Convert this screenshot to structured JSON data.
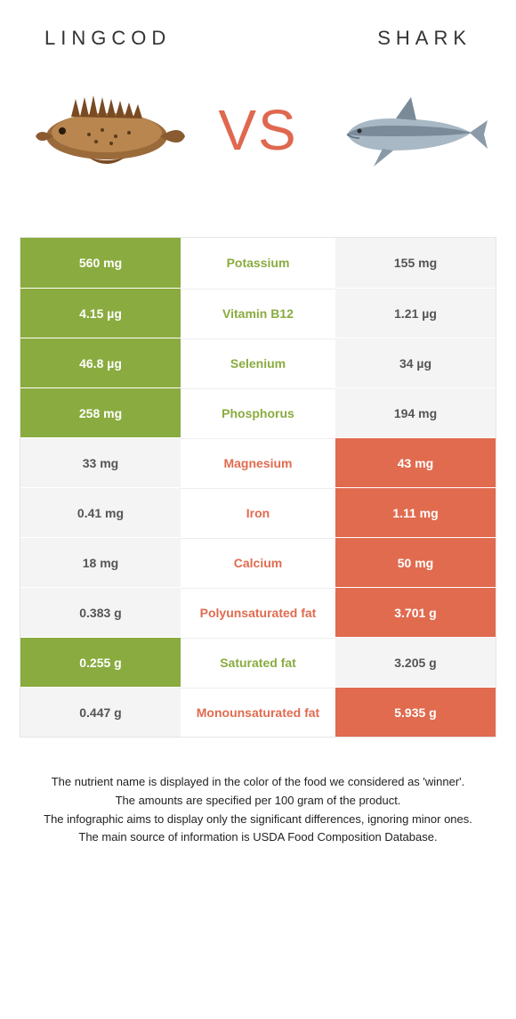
{
  "colors": {
    "left": "#8aab3f",
    "right": "#e06b4f",
    "neutral": "#f4f4f4",
    "neutral_text": "#555555"
  },
  "header": {
    "left_title": "LINGCOD",
    "right_title": "SHARK",
    "vs": "VS"
  },
  "rows": [
    {
      "label": "Potassium",
      "left": "560 mg",
      "right": "155 mg",
      "winner": "left"
    },
    {
      "label": "Vitamin B12",
      "left": "4.15 µg",
      "right": "1.21 µg",
      "winner": "left"
    },
    {
      "label": "Selenium",
      "left": "46.8 µg",
      "right": "34 µg",
      "winner": "left"
    },
    {
      "label": "Phosphorus",
      "left": "258 mg",
      "right": "194 mg",
      "winner": "left"
    },
    {
      "label": "Magnesium",
      "left": "33 mg",
      "right": "43 mg",
      "winner": "right"
    },
    {
      "label": "Iron",
      "left": "0.41 mg",
      "right": "1.11 mg",
      "winner": "right"
    },
    {
      "label": "Calcium",
      "left": "18 mg",
      "right": "50 mg",
      "winner": "right"
    },
    {
      "label": "Polyunsaturated fat",
      "left": "0.383 g",
      "right": "3.701 g",
      "winner": "right"
    },
    {
      "label": "Saturated fat",
      "left": "0.255 g",
      "right": "3.205 g",
      "winner": "left"
    },
    {
      "label": "Monounsaturated fat",
      "left": "0.447 g",
      "right": "5.935 g",
      "winner": "right"
    }
  ],
  "footer": {
    "line1": "The nutrient name is displayed in the color of the food we considered as 'winner'.",
    "line2": "The amounts are specified per 100 gram of the product.",
    "line3": "The infographic aims to display only the significant differences, ignoring minor ones.",
    "line4": "The main source of information is USDA Food Composition Database."
  }
}
